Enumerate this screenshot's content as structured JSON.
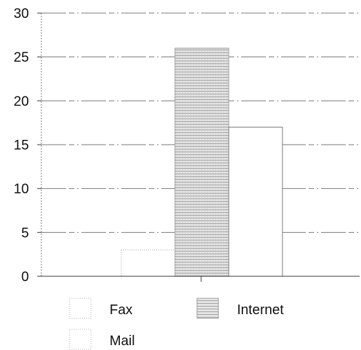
{
  "chart_data": {
    "type": "bar",
    "categories": [
      ""
    ],
    "series": [
      {
        "name": "Fax",
        "values": [
          0
        ]
      },
      {
        "name": "Mail",
        "values": [
          3
        ]
      },
      {
        "name": "Internet",
        "values": [
          26
        ]
      },
      {
        "name": "",
        "values": [
          17
        ]
      }
    ],
    "title": "",
    "xlabel": "",
    "ylabel": "",
    "ylim": [
      0,
      30
    ],
    "yticks": [
      0,
      5,
      10,
      15,
      20,
      25,
      30
    ],
    "grid": true,
    "legend": {
      "position": "bottom",
      "entries": [
        {
          "name": "Fax",
          "pattern": "dotted-outline"
        },
        {
          "name": "Internet",
          "pattern": "dense-hatch"
        },
        {
          "name": "Mail",
          "pattern": "dotted-outline"
        }
      ]
    },
    "colors": {
      "bar_fill": "#ffffff",
      "internet_hatch_light": "#e6e6e6",
      "internet_hatch_dark": "#9a9a9a",
      "axis": "#333333",
      "grid": "#6f6f6f",
      "text": "#111111"
    }
  }
}
